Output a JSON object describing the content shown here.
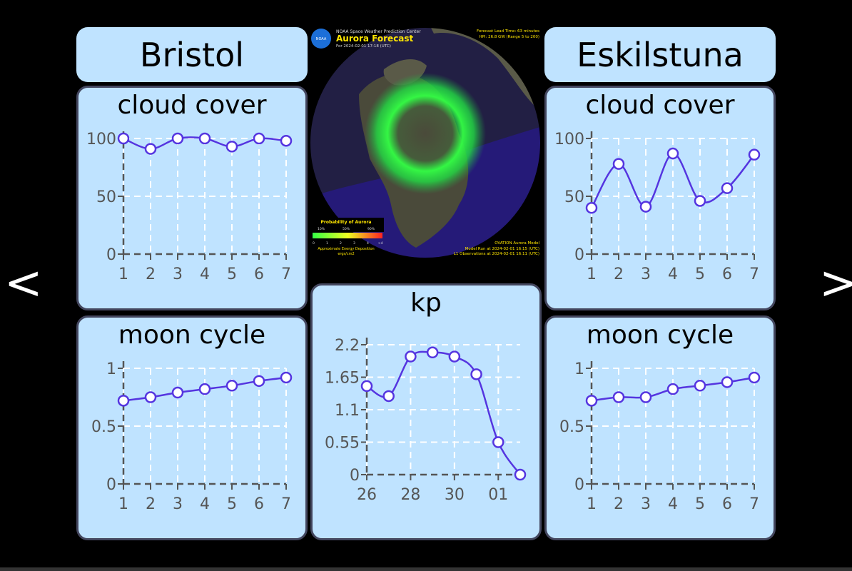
{
  "nav": {
    "prev_label": "<",
    "next_label": ">"
  },
  "locations": [
    {
      "name": "Bristol"
    },
    {
      "name": "Eskilstuna"
    }
  ],
  "aurora_map": {
    "agency": "NOAA Space Weather Prediction Center",
    "title": "Aurora Forecast",
    "for_time": "For 2024-02-01 17:18 (UTC)",
    "lead_time": "Forecast Lead Time:  63 minutes",
    "hpi": "HPI:  26.8 GW (Range 5 to 200)",
    "legend_title": "Probability of Aurora",
    "legend_pcts": [
      "10%",
      "50%",
      "90%"
    ],
    "legend_scale": [
      "0",
      "1",
      "2",
      "3",
      "4",
      ">4"
    ],
    "energy_label": "Approximate Energy Deposition",
    "energy_units": "ergs/cm2",
    "model": "OVATION Aurora Model",
    "model_run": "Model Run at 2024-02-01 16:15 (UTC)",
    "l1_obs": "L1 Observations at 2024-02-01 16:11 (UTC)",
    "colors": {
      "ocean": "#2a1a9a",
      "land": "#4a4a3a",
      "aurora": "#22ff44"
    }
  },
  "colors": {
    "line": "#5535e0",
    "panel": "#bfe3ff",
    "axis": "#555555"
  },
  "chart_data": [
    {
      "id": "bristol_cloud",
      "type": "line",
      "title": "cloud cover",
      "x": [
        "1",
        "2",
        "3",
        "4",
        "5",
        "6",
        "7"
      ],
      "values": [
        100,
        91,
        100,
        100,
        93,
        100,
        98
      ],
      "yticks": [
        "0",
        "50",
        "100"
      ],
      "ylim": [
        0,
        100
      ]
    },
    {
      "id": "eskilstuna_cloud",
      "type": "line",
      "title": "cloud cover",
      "x": [
        "1",
        "2",
        "3",
        "4",
        "5",
        "6",
        "7"
      ],
      "values": [
        40,
        78,
        41,
        87,
        46,
        57,
        86
      ],
      "yticks": [
        "0",
        "50",
        "100"
      ],
      "ylim": [
        0,
        100
      ]
    },
    {
      "id": "bristol_moon",
      "type": "line",
      "title": "moon cycle",
      "x": [
        "1",
        "2",
        "3",
        "4",
        "5",
        "6",
        "7"
      ],
      "values": [
        0.72,
        0.75,
        0.79,
        0.82,
        0.85,
        0.89,
        0.92
      ],
      "yticks": [
        "0",
        "0.5",
        "1"
      ],
      "ylim": [
        0,
        1
      ]
    },
    {
      "id": "eskilstuna_moon",
      "type": "line",
      "title": "moon cycle",
      "x": [
        "1",
        "2",
        "3",
        "4",
        "5",
        "6",
        "7"
      ],
      "values": [
        0.72,
        0.75,
        0.75,
        0.82,
        0.85,
        0.88,
        0.92
      ],
      "yticks": [
        "0",
        "0.5",
        "1"
      ],
      "ylim": [
        0,
        1
      ]
    },
    {
      "id": "kp",
      "type": "line",
      "title": "kp",
      "xticks": [
        "26",
        "28",
        "30",
        "01"
      ],
      "values": [
        1.5,
        1.33,
        2.0,
        2.07,
        2.0,
        1.7,
        0.55,
        0.0
      ],
      "yticks": [
        "0",
        "0.55",
        "1.1",
        "1.65",
        "2.2"
      ],
      "ylim": [
        0,
        2.2
      ]
    }
  ]
}
